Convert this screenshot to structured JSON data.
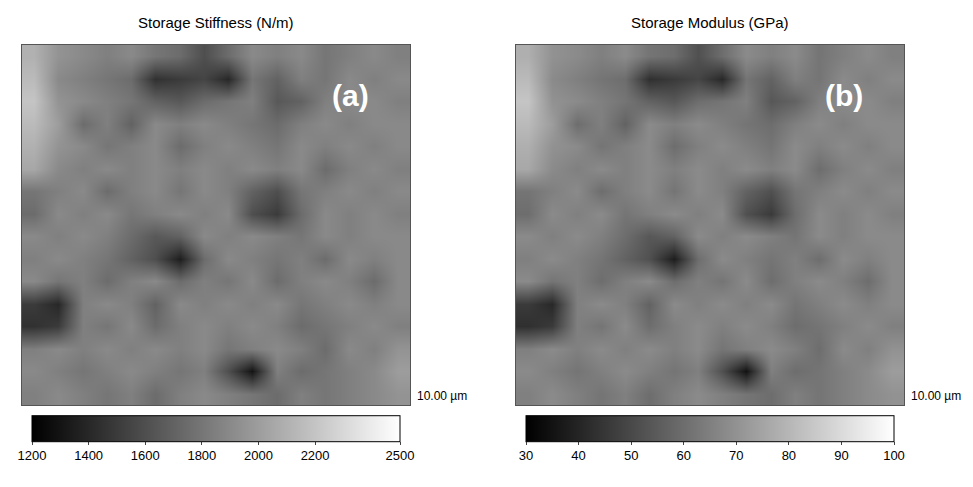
{
  "chart_data": [
    {
      "type": "heatmap",
      "title": "Storage Stiffness (N/m)",
      "panel_label": "(a)",
      "scale_label": "10.00 µm",
      "tick_labels": false,
      "colorbar": {
        "range": [
          1200,
          2500
        ],
        "ticks": [
          1200,
          1400,
          1600,
          1800,
          2000,
          2200,
          2500
        ]
      },
      "cells": [
        [
          2100,
          1950,
          1900,
          1850,
          1900,
          1800,
          1750,
          1600,
          1750,
          1900,
          1850,
          1900,
          1800,
          1850,
          1900,
          1850
        ],
        [
          2150,
          1900,
          1850,
          1800,
          1750,
          1450,
          1500,
          1550,
          1400,
          1800,
          1700,
          1850,
          1800,
          1900,
          1850,
          1900
        ],
        [
          2200,
          1950,
          1900,
          1850,
          1800,
          1700,
          1650,
          1750,
          1800,
          1850,
          1650,
          1700,
          1850,
          1900,
          1900,
          1850
        ],
        [
          2150,
          2000,
          1750,
          1850,
          1700,
          1900,
          1850,
          1900,
          1850,
          1800,
          1750,
          1850,
          1900,
          1850,
          1900,
          1900
        ],
        [
          2100,
          1950,
          1900,
          1800,
          1850,
          1900,
          1750,
          1850,
          1900,
          1850,
          1800,
          1900,
          1850,
          1900,
          1850,
          1900
        ],
        [
          2050,
          1900,
          1850,
          1900,
          1850,
          1900,
          1850,
          1900,
          1850,
          1900,
          1850,
          1900,
          1750,
          1850,
          1900,
          1850
        ],
        [
          1800,
          1850,
          1900,
          1750,
          1850,
          1900,
          1800,
          1900,
          1850,
          1700,
          1600,
          1800,
          1850,
          1900,
          1850,
          1900
        ],
        [
          1750,
          1900,
          1850,
          1900,
          1800,
          1850,
          1900,
          1850,
          1900,
          1600,
          1500,
          1750,
          1900,
          1850,
          1900,
          1850
        ],
        [
          1900,
          1850,
          1900,
          1850,
          1750,
          1650,
          1700,
          1900,
          1850,
          1900,
          1850,
          1800,
          1900,
          1850,
          1900,
          1900
        ],
        [
          1850,
          1900,
          1850,
          1800,
          1700,
          1600,
          1350,
          1750,
          1900,
          1850,
          1800,
          1850,
          1750,
          1900,
          1850,
          1900
        ],
        [
          1900,
          1800,
          1850,
          1750,
          1850,
          1900,
          1750,
          1850,
          1800,
          1900,
          1750,
          1850,
          1900,
          1850,
          1750,
          1900
        ],
        [
          1500,
          1400,
          1850,
          1900,
          1850,
          1700,
          1900,
          1850,
          1900,
          1850,
          1900,
          1800,
          1850,
          1900,
          1850,
          1900
        ],
        [
          1450,
          1500,
          1850,
          1800,
          1900,
          1750,
          1850,
          1900,
          1850,
          1900,
          1850,
          1750,
          1800,
          1850,
          1900,
          1850
        ],
        [
          1850,
          1900,
          1850,
          1900,
          1850,
          1900,
          1850,
          1900,
          1800,
          1850,
          1900,
          1850,
          1750,
          1900,
          1850,
          1950
        ],
        [
          1900,
          1850,
          1800,
          1850,
          1900,
          1850,
          1800,
          1850,
          1600,
          1300,
          1850,
          1750,
          1800,
          1850,
          1900,
          2000
        ],
        [
          1850,
          1900,
          1850,
          1800,
          1850,
          1750,
          1850,
          1900,
          1850,
          1800,
          1750,
          1850,
          1800,
          1850,
          1900,
          1950
        ]
      ]
    },
    {
      "type": "heatmap",
      "title": "Storage Modulus (GPa)",
      "panel_label": "(b)",
      "scale_label": "10.00 µm",
      "tick_labels": false,
      "colorbar": {
        "range": [
          30,
          100
        ],
        "ticks": [
          30,
          40,
          50,
          60,
          70,
          80,
          90,
          100
        ]
      },
      "cells": [
        [
          78,
          70,
          68,
          65,
          68,
          62,
          60,
          52,
          60,
          68,
          65,
          68,
          62,
          65,
          68,
          65
        ],
        [
          81,
          68,
          65,
          62,
          60,
          43,
          46,
          49,
          41,
          62,
          57,
          65,
          62,
          68,
          65,
          68
        ],
        [
          84,
          70,
          68,
          65,
          62,
          57,
          54,
          60,
          62,
          65,
          54,
          57,
          65,
          68,
          68,
          65
        ],
        [
          81,
          73,
          60,
          65,
          57,
          68,
          65,
          68,
          65,
          62,
          60,
          65,
          68,
          65,
          68,
          68
        ],
        [
          78,
          70,
          68,
          62,
          65,
          68,
          60,
          65,
          68,
          65,
          62,
          68,
          65,
          68,
          65,
          68
        ],
        [
          76,
          68,
          65,
          68,
          65,
          68,
          65,
          68,
          65,
          68,
          65,
          68,
          60,
          65,
          68,
          65
        ],
        [
          62,
          65,
          68,
          60,
          65,
          68,
          62,
          68,
          65,
          57,
          52,
          62,
          65,
          68,
          65,
          68
        ],
        [
          60,
          68,
          65,
          68,
          62,
          65,
          68,
          65,
          68,
          52,
          46,
          60,
          68,
          65,
          68,
          65
        ],
        [
          68,
          65,
          68,
          65,
          60,
          54,
          57,
          68,
          65,
          68,
          65,
          62,
          68,
          65,
          68,
          68
        ],
        [
          65,
          68,
          65,
          62,
          57,
          52,
          38,
          60,
          68,
          65,
          62,
          65,
          60,
          68,
          65,
          68
        ],
        [
          68,
          62,
          65,
          60,
          65,
          68,
          60,
          65,
          62,
          68,
          60,
          65,
          68,
          65,
          60,
          68
        ],
        [
          46,
          41,
          65,
          68,
          65,
          57,
          68,
          65,
          68,
          65,
          68,
          62,
          65,
          68,
          65,
          68
        ],
        [
          43,
          46,
          65,
          62,
          68,
          60,
          65,
          68,
          65,
          68,
          65,
          60,
          62,
          65,
          68,
          65
        ],
        [
          65,
          68,
          65,
          68,
          65,
          68,
          65,
          68,
          62,
          65,
          68,
          65,
          60,
          68,
          65,
          70
        ],
        [
          68,
          65,
          62,
          65,
          68,
          65,
          62,
          65,
          52,
          35,
          65,
          60,
          62,
          65,
          68,
          73
        ],
        [
          65,
          68,
          65,
          62,
          65,
          60,
          65,
          68,
          65,
          62,
          60,
          65,
          62,
          65,
          68,
          70
        ]
      ]
    }
  ]
}
